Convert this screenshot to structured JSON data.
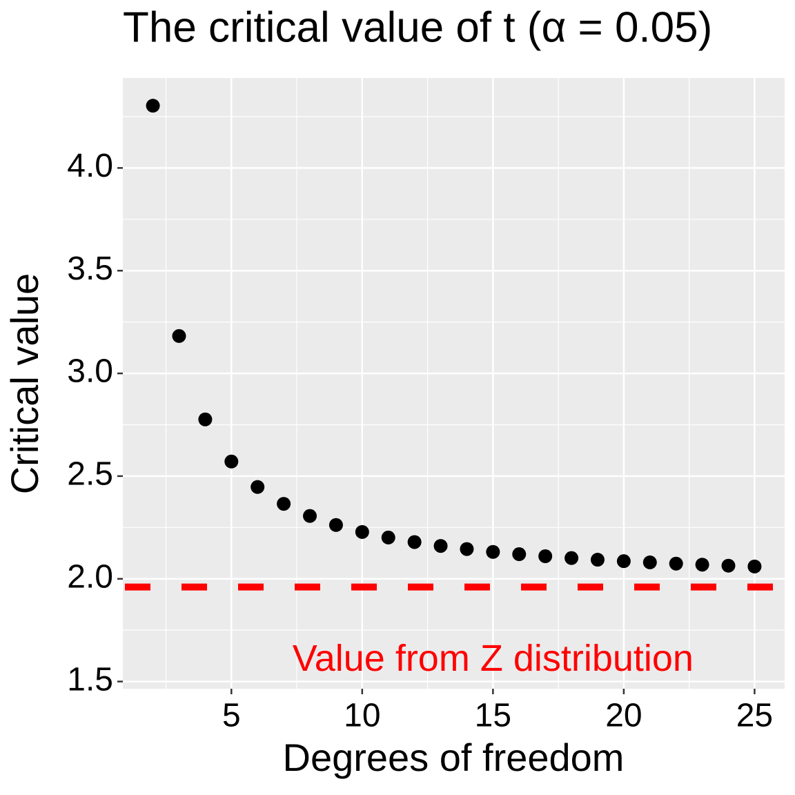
{
  "chart_data": {
    "type": "scatter",
    "title": "The critical value of t (α = 0.05)",
    "x_label": "Degrees of freedom",
    "y_label": "Critical value",
    "x": [
      2,
      3,
      4,
      5,
      6,
      7,
      8,
      9,
      10,
      11,
      12,
      13,
      14,
      15,
      16,
      17,
      18,
      19,
      20,
      21,
      22,
      23,
      24,
      25
    ],
    "series": [
      {
        "name": "Critical value",
        "color": "#000000",
        "values": [
          4.303,
          3.182,
          2.776,
          2.571,
          2.447,
          2.365,
          2.306,
          2.262,
          2.228,
          2.201,
          2.179,
          2.16,
          2.145,
          2.131,
          2.12,
          2.11,
          2.101,
          2.093,
          2.086,
          2.08,
          2.074,
          2.069,
          2.064,
          2.06
        ]
      }
    ],
    "reference_line": {
      "value": 1.96,
      "color": "#ff0000",
      "dashed": true
    },
    "annotation": {
      "text": "Value from Z distribution",
      "x": 15,
      "y": 1.6,
      "color": "#ff0000"
    },
    "xlim": [
      0.85,
      26.15
    ],
    "ylim": [
      1.465,
      4.438
    ],
    "xticks": [
      5,
      10,
      15,
      20,
      25
    ],
    "yticks": [
      {
        "value": 1.5,
        "label": "1.5"
      },
      {
        "value": 2,
        "label": "2.0"
      },
      {
        "value": 2.5,
        "label": "2.5"
      },
      {
        "value": 3,
        "label": "3.0"
      },
      {
        "value": 3.5,
        "label": "3.5"
      },
      {
        "value": 4,
        "label": "4.0"
      }
    ],
    "minor_xticks": [
      2.5,
      7.5,
      12.5,
      17.5,
      22.5
    ],
    "minor_yticks": [
      1.75,
      2.25,
      2.75,
      3.25,
      3.75,
      4.25
    ],
    "grid": true
  }
}
